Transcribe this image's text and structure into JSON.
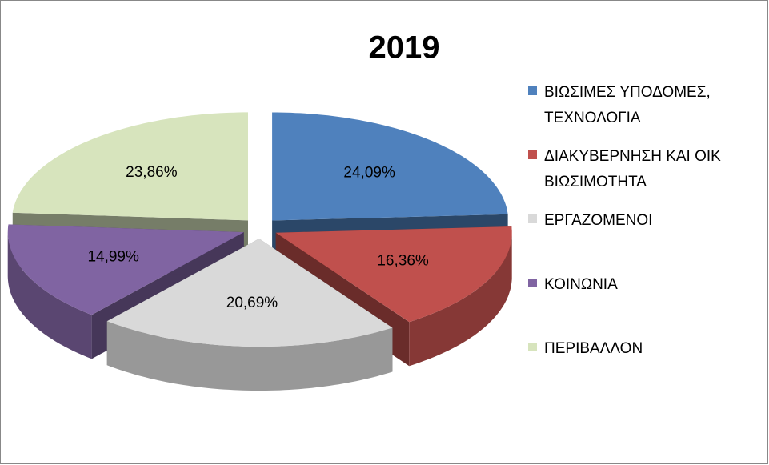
{
  "chart_data": {
    "type": "pie",
    "title": "2019",
    "categories": [
      "ΒΙΩΣΙΜΕΣ ΥΠΟΔΟΜΕΣ, ΤΕΧΝΟΛΟΓΙΑ",
      "ΔΙΑΚΥΒΕΡΝΗΣΗ ΚΑΙ ΟΙΚ ΒΙΩΣΙΜΟΤΗΤΑ",
      "ΕΡΓΑΖΟΜΕΝΟΙ",
      "ΚΟΙΝΩΝΙΑ",
      "ΠΕΡΙΒΑΛΛΟΝ"
    ],
    "values": [
      24.09,
      16.36,
      20.69,
      14.99,
      23.86
    ],
    "value_labels": [
      "24,09%",
      "16,36%",
      "20,69%",
      "14,99%",
      "23,86%"
    ],
    "colors": [
      "#4f81bd",
      "#c0504d",
      "#d9d9d9",
      "#8064a2",
      "#d7e4bd"
    ],
    "legend": "right"
  }
}
